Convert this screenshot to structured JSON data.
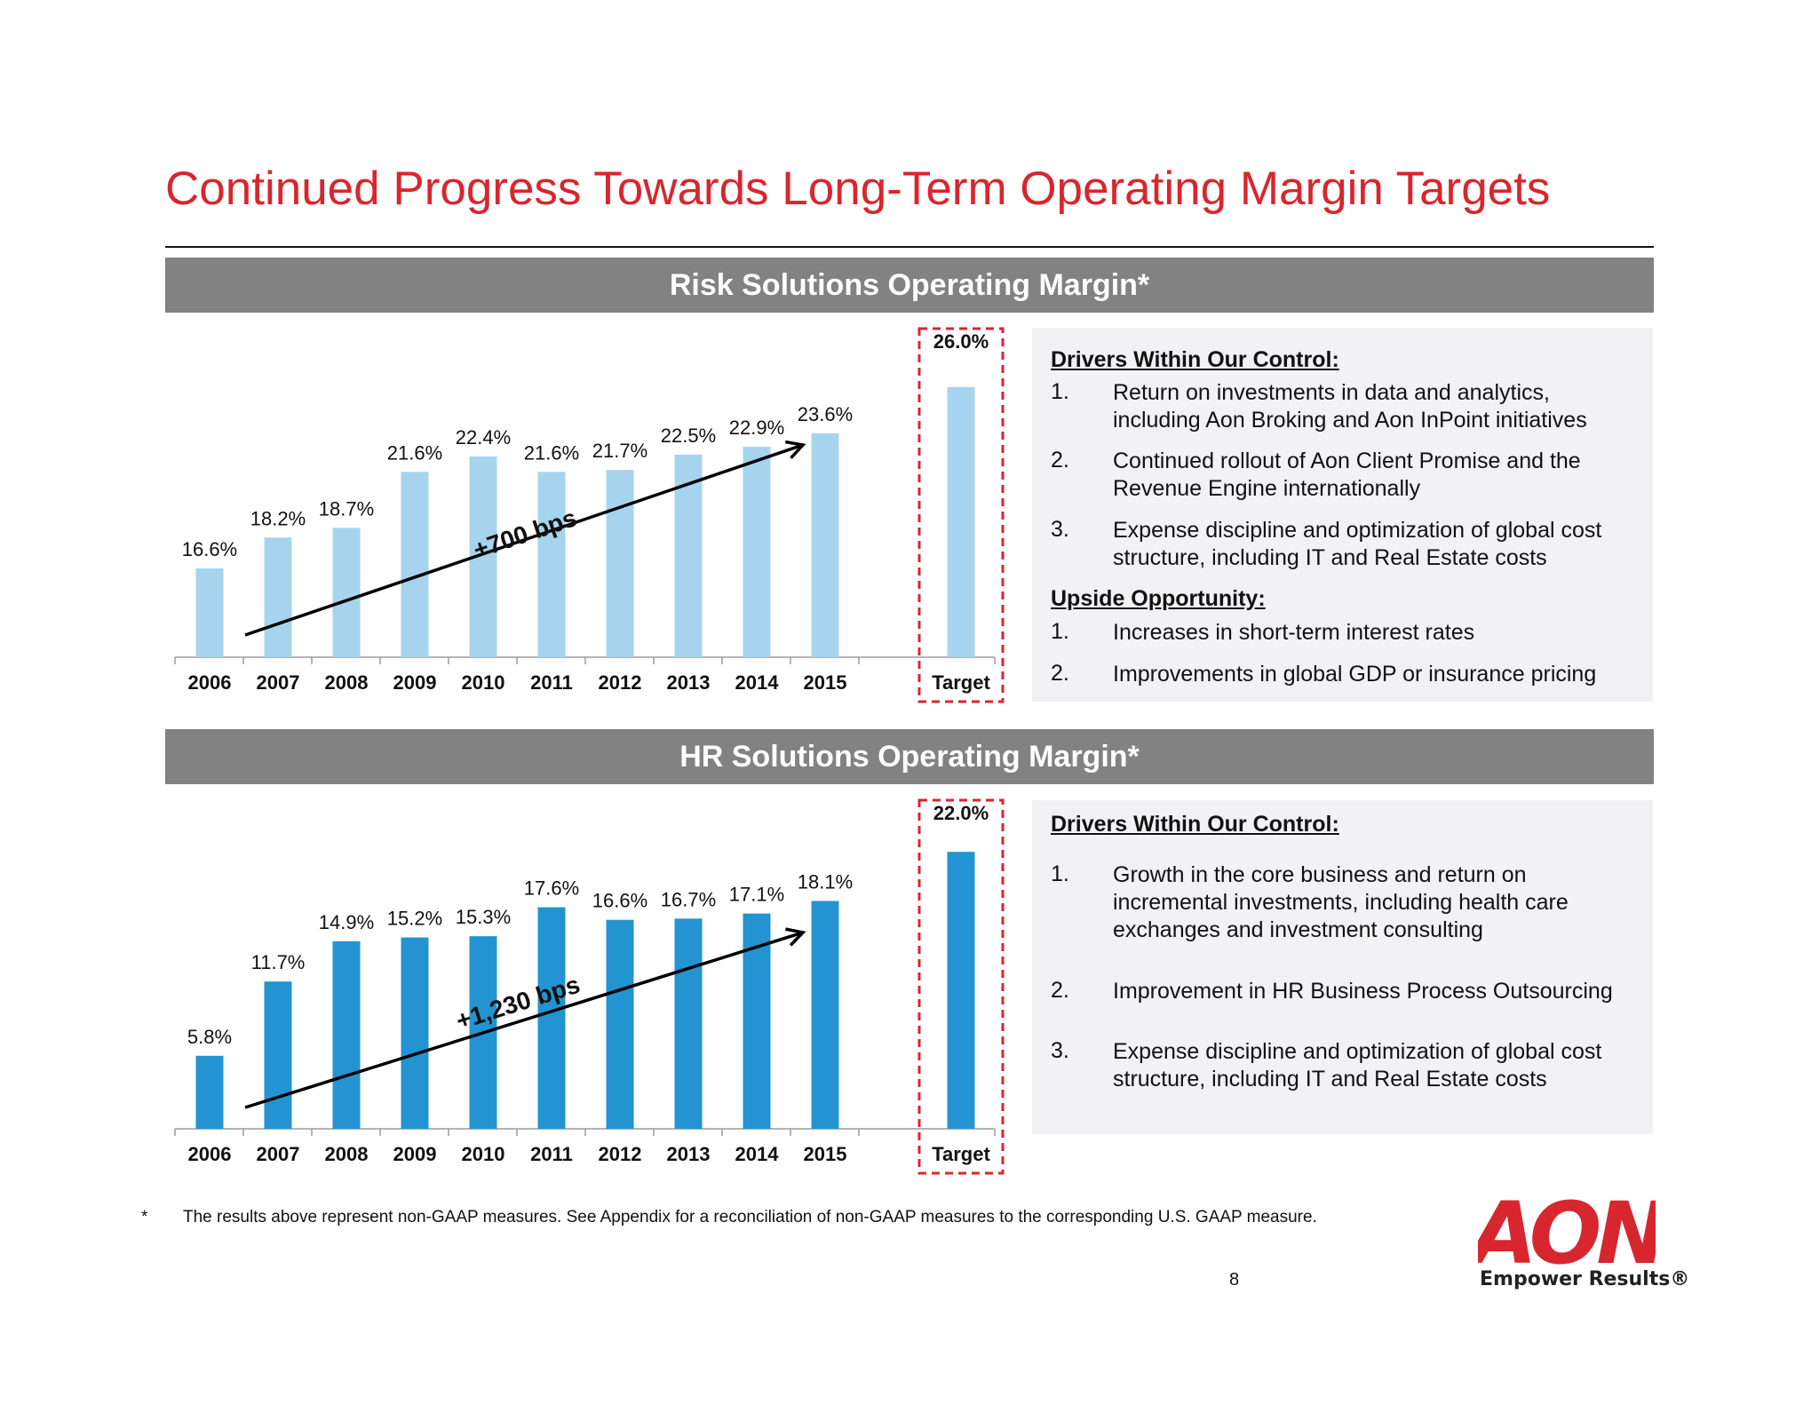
{
  "page": {
    "title": "Continued Progress Towards Long-Term Operating Margin Targets",
    "footnote_marker": "*",
    "footnote": "The results above represent non-GAAP measures. See Appendix for a reconciliation of non-GAAP measures to the corresponding U.S. GAAP measure.",
    "page_number": "8",
    "logo_text": "AON",
    "tagline": "Empower Results®"
  },
  "colors": {
    "title": "#d8262e",
    "risk_bar": "#a6d4ee",
    "hr_bar": "#2394d1",
    "band": "#828282",
    "target_box": "#d8262e"
  },
  "chart_data": [
    {
      "type": "bar",
      "title": "Risk Solutions Operating Margin*",
      "categories": [
        "2006",
        "2007",
        "2008",
        "2009",
        "2010",
        "2011",
        "2012",
        "2013",
        "2014",
        "2015",
        "Target"
      ],
      "values": [
        16.6,
        18.2,
        18.7,
        21.6,
        22.4,
        21.6,
        21.7,
        22.5,
        22.9,
        23.6,
        26.0
      ],
      "data_labels": [
        "16.6%",
        "18.2%",
        "18.7%",
        "21.6%",
        "22.4%",
        "21.6%",
        "21.7%",
        "22.5%",
        "22.9%",
        "23.6%",
        "26.0%"
      ],
      "annotation": "+700 bps",
      "highlighted_category": "Target",
      "grid": false,
      "xlabel": "",
      "ylabel": "",
      "ylim": [
        12,
        27
      ]
    },
    {
      "type": "bar",
      "title": "HR Solutions Operating Margin*",
      "categories": [
        "2006",
        "2007",
        "2008",
        "2009",
        "2010",
        "2011",
        "2012",
        "2013",
        "2014",
        "2015",
        "Target"
      ],
      "values": [
        5.8,
        11.7,
        14.9,
        15.2,
        15.3,
        17.6,
        16.6,
        16.7,
        17.1,
        18.1,
        22.0
      ],
      "data_labels": [
        "5.8%",
        "11.7%",
        "14.9%",
        "15.2%",
        "15.3%",
        "17.6%",
        "16.6%",
        "16.7%",
        "17.1%",
        "18.1%",
        "22.0%"
      ],
      "annotation": "+1,230 bps",
      "highlighted_category": "Target",
      "grid": false,
      "xlabel": "",
      "ylabel": "",
      "ylim": [
        0,
        23
      ]
    }
  ],
  "risk_panel": {
    "heading1": "Drivers Within Our Control:",
    "items1": [
      {
        "num": "1.",
        "text": "Return on investments in data and analytics, including Aon Broking and Aon InPoint initiatives"
      },
      {
        "num": "2.",
        "text": "Continued rollout of Aon Client Promise and the Revenue Engine internationally"
      },
      {
        "num": "3.",
        "text": "Expense discipline and optimization of global cost structure, including IT and Real Estate costs"
      }
    ],
    "heading2": "Upside Opportunity:",
    "items2": [
      {
        "num": "1.",
        "text": "Increases in short-term interest rates"
      },
      {
        "num": "2.",
        "text": "Improvements in global GDP or insurance pricing"
      }
    ]
  },
  "hr_panel": {
    "heading1": "Drivers Within Our Control:",
    "items1": [
      {
        "num": "1.",
        "text": "Growth in the core business and return on incremental investments, including health care exchanges and investment consulting"
      },
      {
        "num": "2.",
        "text": "Improvement in HR Business Process Outsourcing"
      },
      {
        "num": "3.",
        "text": "Expense discipline and optimization of global cost structure, including IT and Real Estate costs"
      }
    ]
  }
}
